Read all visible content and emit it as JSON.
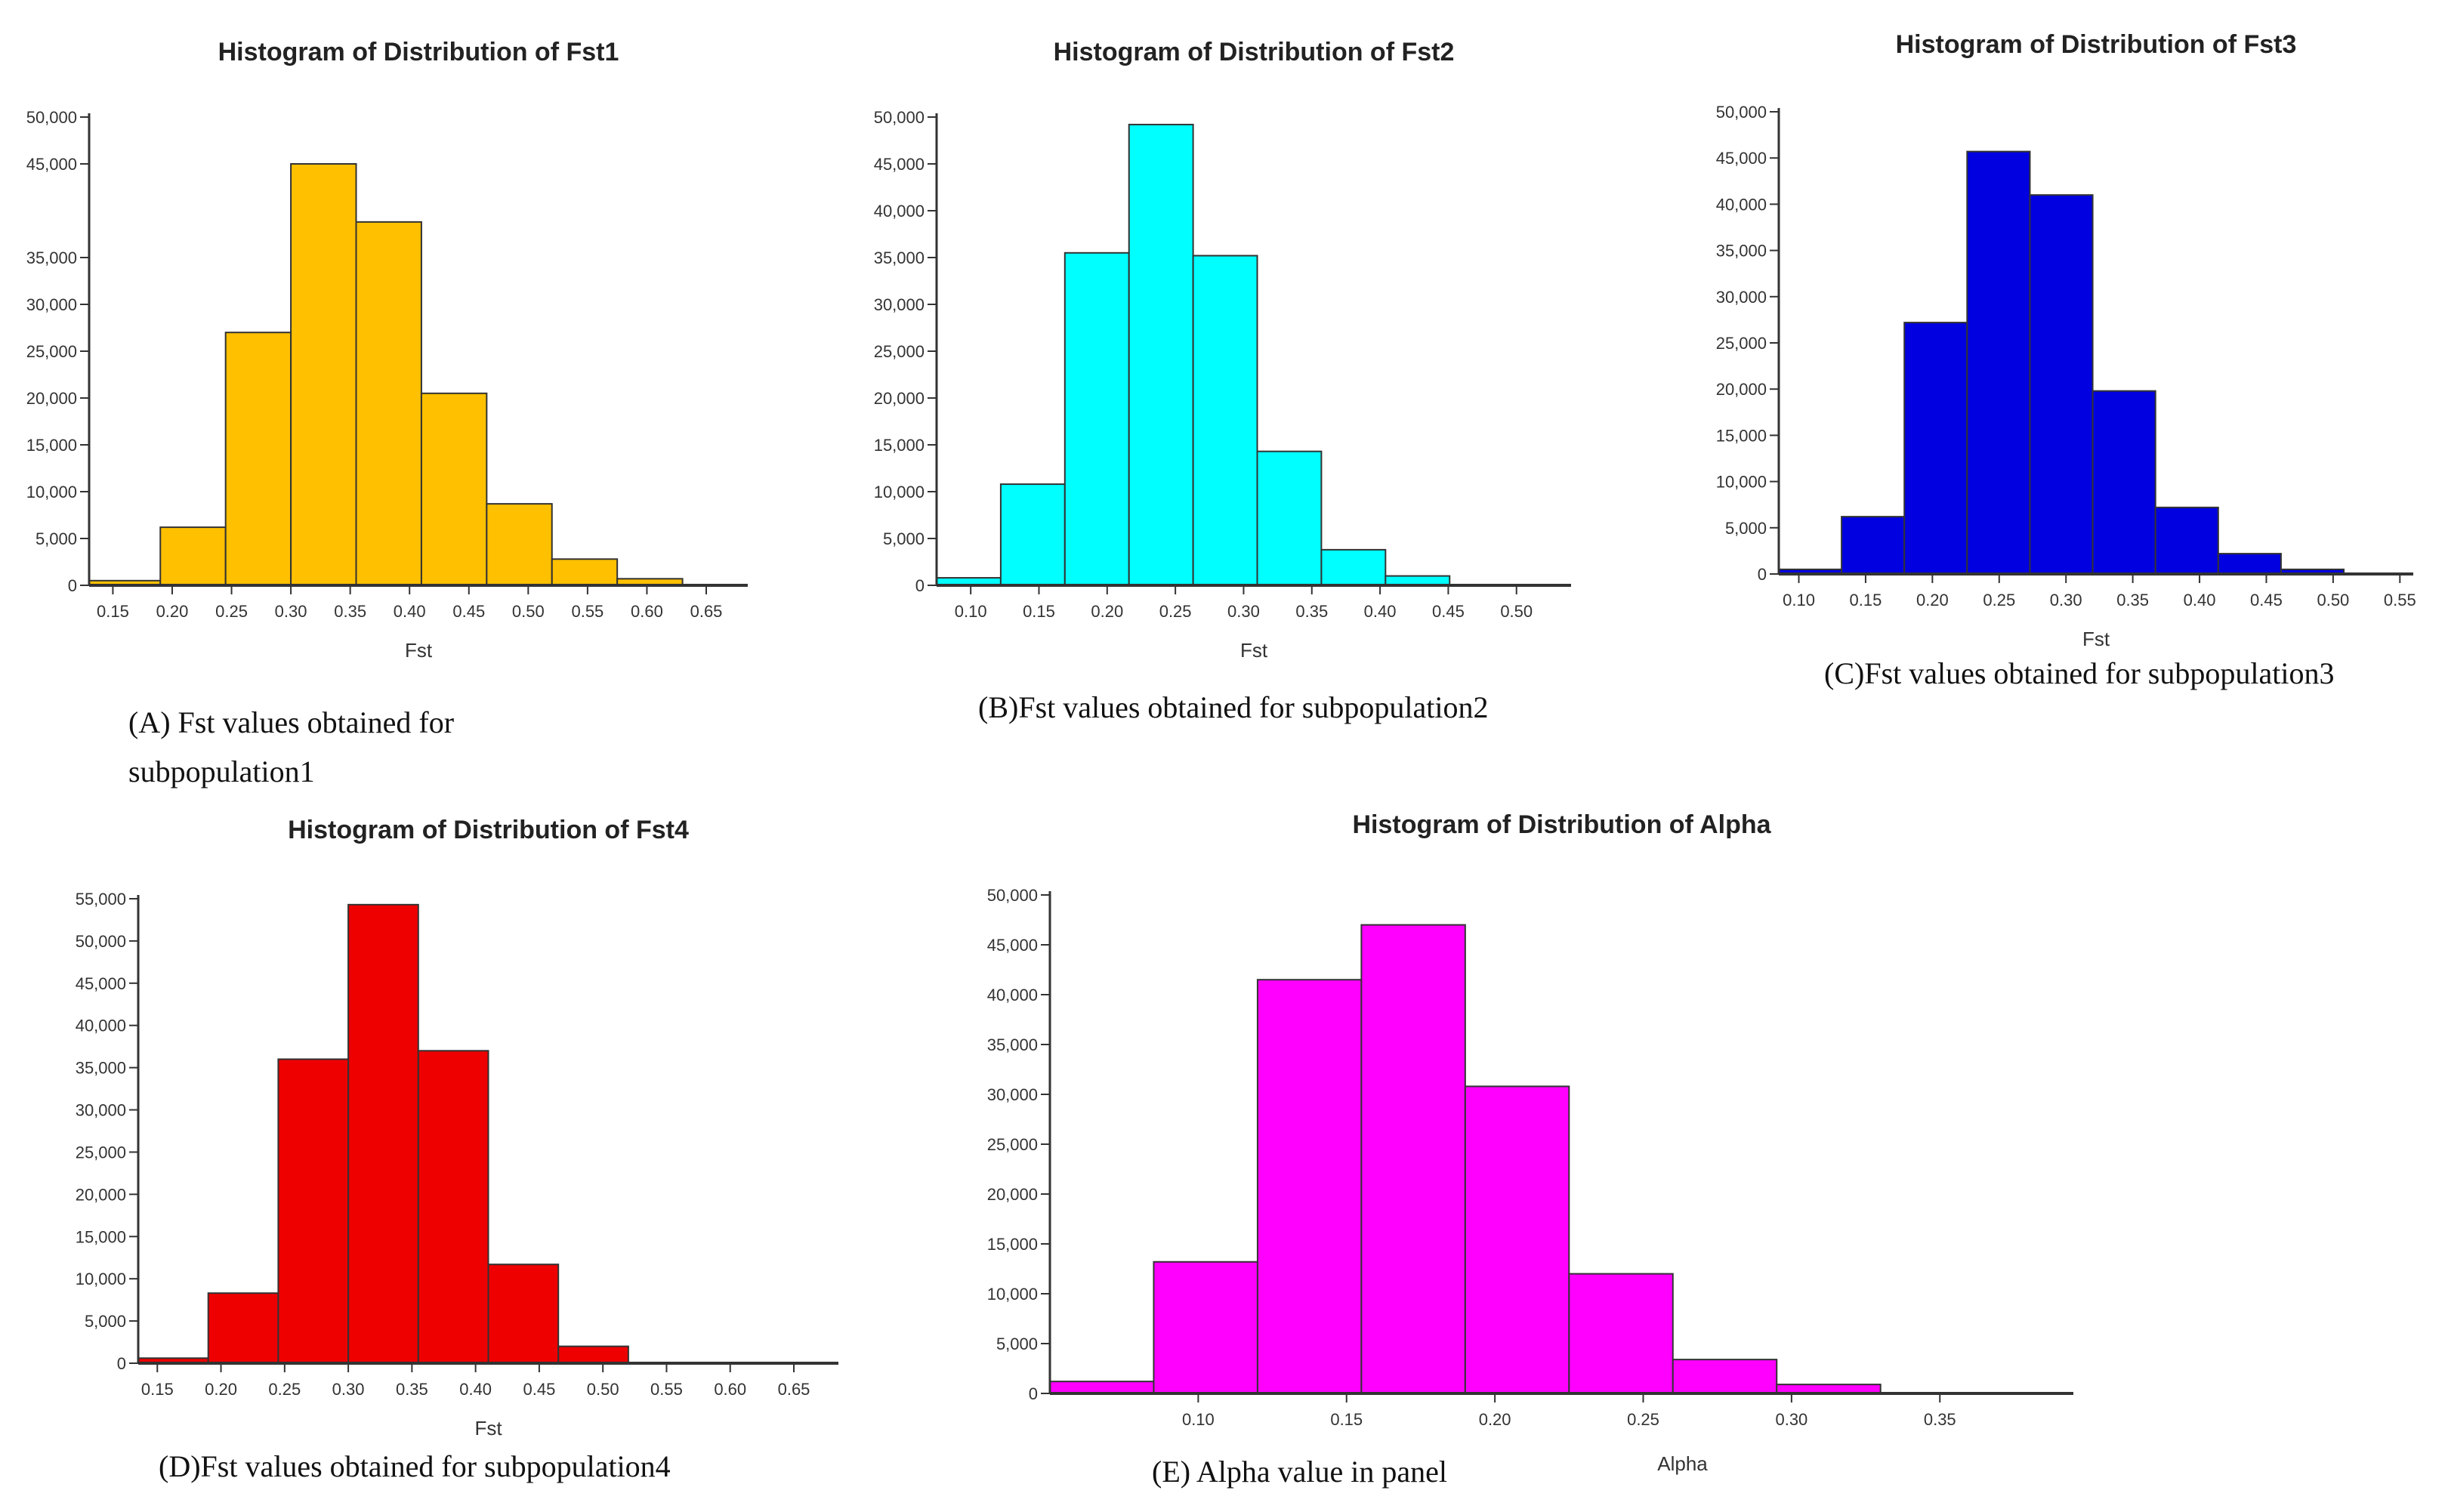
{
  "chart_data": [
    {
      "type": "bar",
      "title": "Histogram of Distribution of Fst1",
      "xlabel": "Fst",
      "ylabel": "",
      "caption": [
        "(A) Fst values obtained for",
        "subpopulation1"
      ],
      "color": "#FFC000",
      "xlim": [
        0.13,
        0.685
      ],
      "ylim": [
        0,
        50000
      ],
      "xticks": [
        "0.15",
        "0.20",
        "0.25",
        "0.30",
        "0.35",
        "0.40",
        "0.45",
        "0.50",
        "0.55",
        "0.60",
        "0.65"
      ],
      "yticks": [
        "0",
        "5,000",
        "10,000",
        "15,000",
        "20,000",
        "25,000",
        "30,000",
        "35,000",
        "45,000",
        "50,000"
      ],
      "bins": [
        {
          "x0": 0.13,
          "x1": 0.19,
          "value": 500
        },
        {
          "x0": 0.19,
          "x1": 0.245,
          "value": 6200
        },
        {
          "x0": 0.245,
          "x1": 0.3,
          "value": 27000
        },
        {
          "x0": 0.3,
          "x1": 0.355,
          "value": 45000
        },
        {
          "x0": 0.355,
          "x1": 0.41,
          "value": 38800
        },
        {
          "x0": 0.41,
          "x1": 0.465,
          "value": 20500
        },
        {
          "x0": 0.465,
          "x1": 0.52,
          "value": 8700
        },
        {
          "x0": 0.52,
          "x1": 0.575,
          "value": 2800
        },
        {
          "x0": 0.575,
          "x1": 0.63,
          "value": 700
        }
      ]
    },
    {
      "type": "bar",
      "title": "Histogram of Distribution of Fst2",
      "xlabel": "Fst",
      "ylabel": "",
      "caption": [
        "(B)Fst values obtained for subpopulation2"
      ],
      "color": "#00FFFF",
      "xlim": [
        0.075,
        0.54
      ],
      "ylim": [
        0,
        50000
      ],
      "xticks": [
        "0.10",
        "0.15",
        "0.20",
        "0.25",
        "0.30",
        "0.35",
        "0.40",
        "0.45",
        "0.50"
      ],
      "yticks": [
        "0",
        "5,000",
        "10,000",
        "15,000",
        "20,000",
        "25,000",
        "30,000",
        "35,000",
        "40,000",
        "45,000",
        "50,000"
      ],
      "bins": [
        {
          "x0": 0.075,
          "x1": 0.122,
          "value": 800
        },
        {
          "x0": 0.122,
          "x1": 0.169,
          "value": 10800
        },
        {
          "x0": 0.169,
          "x1": 0.216,
          "value": 35500
        },
        {
          "x0": 0.216,
          "x1": 0.263,
          "value": 49200
        },
        {
          "x0": 0.263,
          "x1": 0.31,
          "value": 35200
        },
        {
          "x0": 0.31,
          "x1": 0.357,
          "value": 14300
        },
        {
          "x0": 0.357,
          "x1": 0.404,
          "value": 3800
        },
        {
          "x0": 0.404,
          "x1": 0.451,
          "value": 1000
        }
      ]
    },
    {
      "type": "bar",
      "title": "Histogram of Distribution of Fst3",
      "xlabel": "Fst",
      "ylabel": "",
      "caption": [
        "(C)Fst values obtained for subpopulation3"
      ],
      "color": "#0000E0",
      "xlim": [
        0.085,
        0.56
      ],
      "ylim": [
        0,
        50000
      ],
      "xticks": [
        "0.10",
        "0.15",
        "0.20",
        "0.25",
        "0.30",
        "0.35",
        "0.40",
        "0.45",
        "0.50",
        "0.55"
      ],
      "yticks": [
        "0",
        "5,000",
        "10,000",
        "15,000",
        "20,000",
        "25,000",
        "30,000",
        "35,000",
        "40,000",
        "45,000",
        "50,000"
      ],
      "bins": [
        {
          "x0": 0.085,
          "x1": 0.132,
          "value": 500
        },
        {
          "x0": 0.132,
          "x1": 0.179,
          "value": 6200
        },
        {
          "x0": 0.179,
          "x1": 0.226,
          "value": 27200
        },
        {
          "x0": 0.226,
          "x1": 0.273,
          "value": 45700
        },
        {
          "x0": 0.273,
          "x1": 0.32,
          "value": 41000
        },
        {
          "x0": 0.32,
          "x1": 0.367,
          "value": 19800
        },
        {
          "x0": 0.367,
          "x1": 0.414,
          "value": 7200
        },
        {
          "x0": 0.414,
          "x1": 0.461,
          "value": 2200
        },
        {
          "x0": 0.461,
          "x1": 0.508,
          "value": 500
        }
      ]
    },
    {
      "type": "bar",
      "title": "Histogram of Distribution of Fst4",
      "xlabel": "Fst",
      "ylabel": "",
      "caption": [
        "(D)Fst values obtained for subpopulation4"
      ],
      "color": "#EE0000",
      "xlim": [
        0.135,
        0.685
      ],
      "ylim": [
        0,
        55000
      ],
      "xticks": [
        "0.15",
        "0.20",
        "0.25",
        "0.30",
        "0.35",
        "0.40",
        "0.45",
        "0.50",
        "0.55",
        "0.60",
        "0.65"
      ],
      "yticks": [
        "0",
        "5,000",
        "10,000",
        "15,000",
        "20,000",
        "25,000",
        "30,000",
        "35,000",
        "40,000",
        "45,000",
        "50,000",
        "55,000"
      ],
      "bins": [
        {
          "x0": 0.135,
          "x1": 0.19,
          "value": 600
        },
        {
          "x0": 0.19,
          "x1": 0.245,
          "value": 8300
        },
        {
          "x0": 0.245,
          "x1": 0.3,
          "value": 36000
        },
        {
          "x0": 0.3,
          "x1": 0.355,
          "value": 54300
        },
        {
          "x0": 0.355,
          "x1": 0.41,
          "value": 37000
        },
        {
          "x0": 0.41,
          "x1": 0.465,
          "value": 11700
        },
        {
          "x0": 0.465,
          "x1": 0.52,
          "value": 2000
        }
      ]
    },
    {
      "type": "bar",
      "title": "Histogram of Distribution of Alpha",
      "xlabel": "Alpha",
      "ylabel": "",
      "caption": [
        "(E) Alpha value in panel"
      ],
      "color": "#FF00FF",
      "xlim": [
        0.05,
        0.395
      ],
      "ylim": [
        0,
        50000
      ],
      "xticks": [
        "0.10",
        "0.15",
        "0.20",
        "0.25",
        "0.30",
        "0.35"
      ],
      "yticks": [
        "0",
        "5,000",
        "10,000",
        "15,000",
        "20,000",
        "25,000",
        "30,000",
        "35,000",
        "40,000",
        "45,000",
        "50,000"
      ],
      "bins": [
        {
          "x0": 0.05,
          "x1": 0.085,
          "value": 1200
        },
        {
          "x0": 0.085,
          "x1": 0.12,
          "value": 13200
        },
        {
          "x0": 0.12,
          "x1": 0.155,
          "value": 41500
        },
        {
          "x0": 0.155,
          "x1": 0.19,
          "value": 47000
        },
        {
          "x0": 0.19,
          "x1": 0.225,
          "value": 30800
        },
        {
          "x0": 0.225,
          "x1": 0.26,
          "value": 12000
        },
        {
          "x0": 0.26,
          "x1": 0.295,
          "value": 3400
        },
        {
          "x0": 0.295,
          "x1": 0.33,
          "value": 900
        }
      ]
    }
  ]
}
